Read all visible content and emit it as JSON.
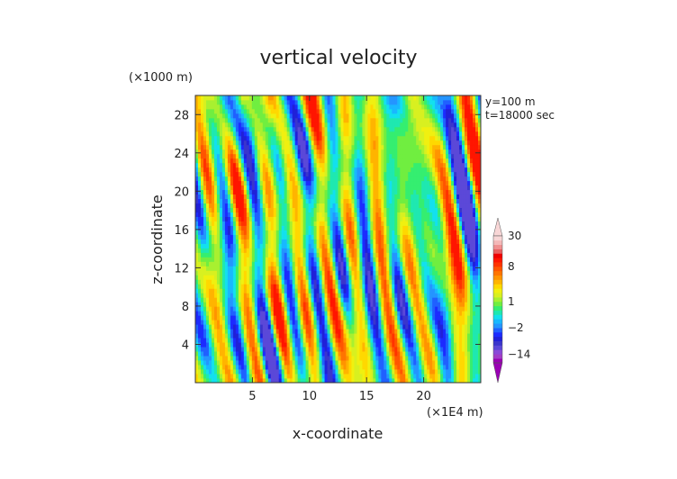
{
  "chart_data": {
    "type": "heatmap",
    "title": "vertical velocity",
    "xlabel": "x-coordinate",
    "ylabel": "z-coordinate",
    "x_unit": "(×1E4 m)",
    "y_unit": "(×1000 m)",
    "xlim": [
      0,
      25
    ],
    "ylim": [
      0,
      30
    ],
    "x_ticks": [
      5,
      10,
      15,
      20
    ],
    "y_ticks": [
      4,
      8,
      12,
      16,
      20,
      24,
      28
    ],
    "annotations": [
      "y=100 m",
      "t=18000 sec"
    ],
    "colorbar": {
      "tick_labels": [
        "30",
        "8",
        "1",
        "−2",
        "−14"
      ],
      "tick_values": [
        30,
        8,
        1,
        -2,
        -14
      ],
      "levels": [
        -20,
        -17,
        -14,
        -11,
        -8,
        -5,
        -4,
        -3,
        -2,
        -1.5,
        -1,
        -0.5,
        0,
        0.5,
        1,
        1.5,
        2,
        3,
        4,
        5,
        6,
        7,
        8,
        10,
        12,
        14,
        17,
        20,
        25,
        30
      ],
      "colors": [
        "#9a00b4",
        "#a23cc8",
        "#8a4ad8",
        "#5b48d8",
        "#3a35cc",
        "#2020d8",
        "#1c2bff",
        "#2060ff",
        "#2495ff",
        "#19b8ff",
        "#13e0ee",
        "#1fe8b0",
        "#35ee70",
        "#70ee40",
        "#a8f030",
        "#d8f020",
        "#f0f010",
        "#ffd800",
        "#ffb400",
        "#ff9400",
        "#ff7400",
        "#ff5500",
        "#ff3300",
        "#ff1500",
        "#f00000",
        "#e86060",
        "#f09090",
        "#f4b8b8",
        "#f8d6d6"
      ]
    }
  }
}
